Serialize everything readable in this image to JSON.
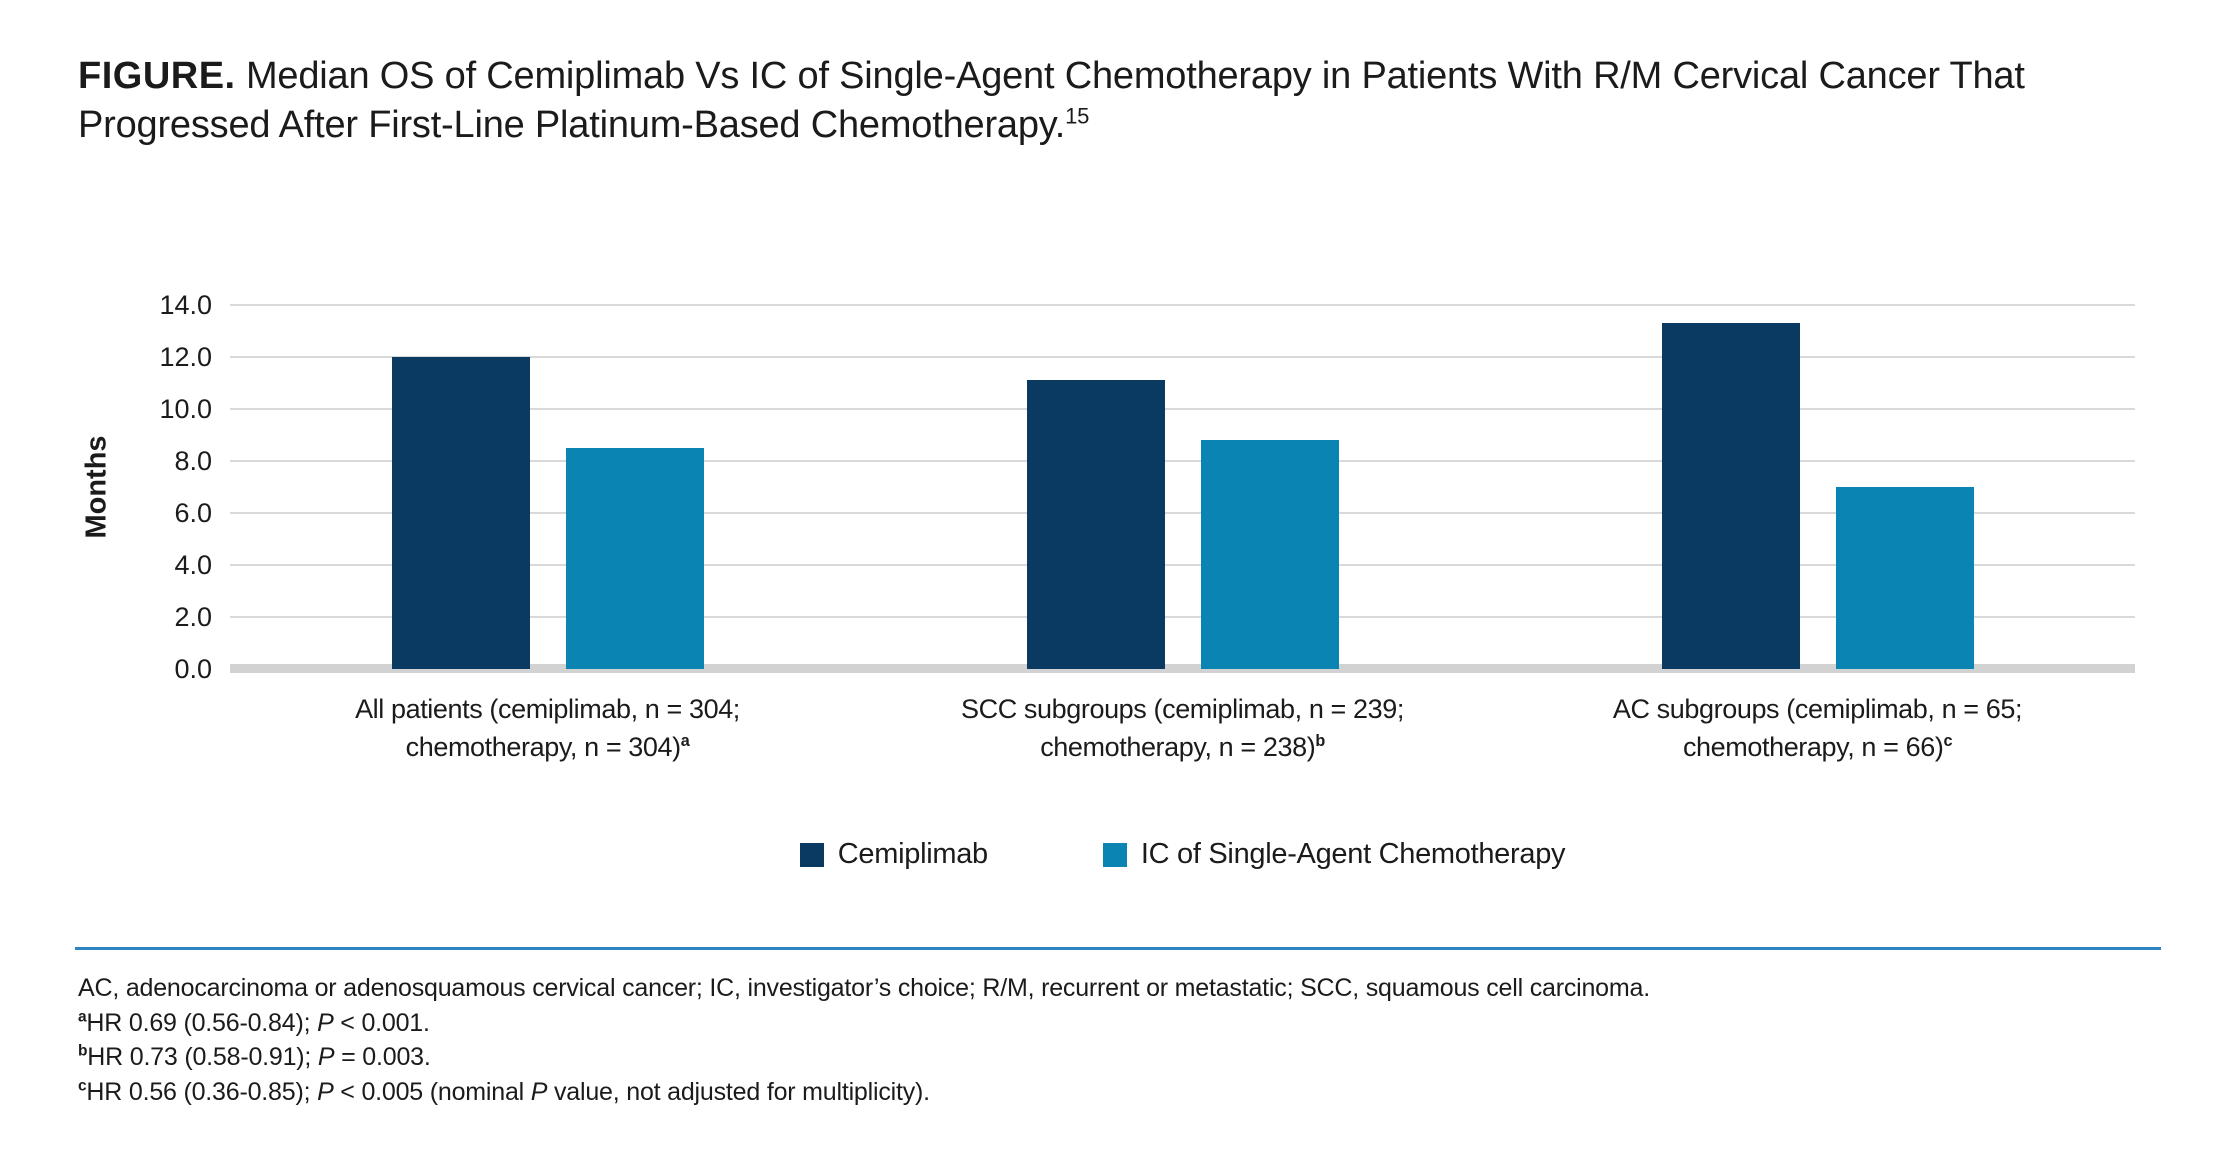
{
  "figure": {
    "label": "FIGURE.",
    "title": " Median OS of Cemiplimab Vs IC of Single-Agent Chemotherapy in Patients With R/M Cervical Cancer That Progressed After First-Line Platinum-Based Chemotherapy.",
    "reference_superscript": "15"
  },
  "chart_data": {
    "type": "bar",
    "title": "",
    "xlabel": "",
    "ylabel": "Months",
    "ylim": [
      0,
      14
    ],
    "ytick_labels": [
      "14.0",
      "12.0",
      "10.0",
      "8.0",
      "6.0",
      "4.0",
      "2.0",
      "0.0"
    ],
    "grid": true,
    "legend_position": "bottom-center",
    "categories": [
      {
        "line1": "All patients (cemiplimab, n = 304;",
        "line2": "chemotherapy, n = 304)",
        "mark": "a"
      },
      {
        "line1": "SCC subgroups (cemiplimab, n = 239;",
        "line2": "chemotherapy, n = 238)",
        "mark": "b"
      },
      {
        "line1": "AC subgroups (cemiplimab, n = 65;",
        "line2": "chemotherapy, n = 66)",
        "mark": "c"
      }
    ],
    "series": [
      {
        "name": "Cemiplimab",
        "color": "#0a3a62",
        "values": [
          12.0,
          11.1,
          13.3
        ]
      },
      {
        "name": "IC of Single-Agent Chemotherapy",
        "color": "#0a84b3",
        "values": [
          8.5,
          8.8,
          7.0
        ]
      }
    ]
  },
  "footnotes": [
    {
      "mark": "",
      "segments": [
        {
          "t": "AC, adenocarcinoma or adenosquamous cervical cancer; IC, investigator’s choice; R/M, recurrent or metastatic; SCC, squamous cell carcinoma."
        }
      ]
    },
    {
      "mark": "a",
      "segments": [
        {
          "t": "HR 0.69 (0.56-0.84); "
        },
        {
          "t": "P",
          "i": true
        },
        {
          "t": " < 0.001."
        }
      ]
    },
    {
      "mark": "b",
      "segments": [
        {
          "t": "HR 0.73 (0.58-0.91); "
        },
        {
          "t": "P",
          "i": true
        },
        {
          "t": " = 0.003."
        }
      ]
    },
    {
      "mark": "c",
      "segments": [
        {
          "t": "HR 0.56 (0.36-0.85); "
        },
        {
          "t": "P",
          "i": true
        },
        {
          "t": " < 0.005 (nominal "
        },
        {
          "t": "P",
          "i": true
        },
        {
          "t": " value, not adjusted for multiplicity)."
        }
      ]
    }
  ],
  "colors": {
    "cemiplimab_bar": "#0a3a62",
    "chemotherapy_bar": "#0a84b3",
    "gridline": "#d9d9d9",
    "baseline": "#d2d2d2",
    "divider_line": "#2e86c0",
    "text": "#1b1b1b"
  }
}
